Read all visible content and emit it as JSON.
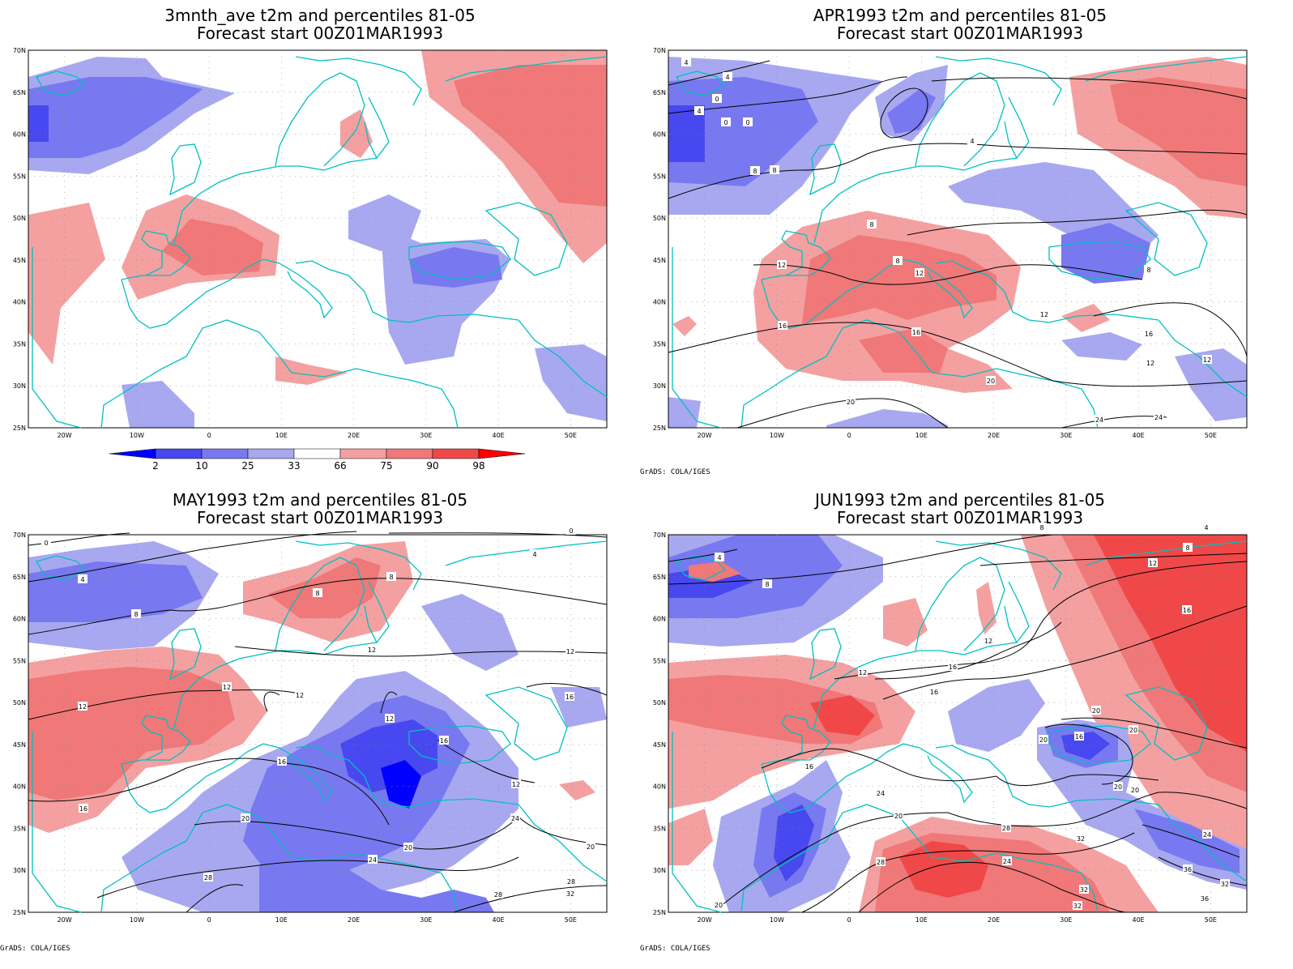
{
  "credit": "GrADS: COLA/IGES",
  "lat_labels": [
    "70N",
    "65N",
    "60N",
    "55N",
    "50N",
    "45N",
    "40N",
    "35N",
    "30N",
    "25N"
  ],
  "lon_labels": [
    "20W",
    "10W",
    "0",
    "10E",
    "20E",
    "30E",
    "40E",
    "50E"
  ],
  "legend": {
    "values": [
      "2",
      "10",
      "25",
      "33",
      "66",
      "75",
      "90",
      "98"
    ],
    "colors": [
      "#0000ff",
      "#4848f0",
      "#7878f0",
      "#a8a8f0",
      "#ffffff",
      "#f4a0a0",
      "#f07878",
      "#f04848",
      "#ff0000"
    ]
  },
  "panels": [
    {
      "id": "p1",
      "title1": "3mnth_ave t2m and percentiles 81-05",
      "title2": "Forecast start 00Z01MAR1993",
      "contour_labels": []
    },
    {
      "id": "p2",
      "title1": "APR1993 t2m and percentiles 81-05",
      "title2": "Forecast start 00Z01MAR1993",
      "contour_labels": [
        "4",
        "0",
        "4",
        "0",
        "0",
        "4",
        "4",
        "8",
        "8",
        "8",
        "12",
        "8",
        "12",
        "8",
        "16",
        "12",
        "16",
        "12",
        "20",
        "20",
        "24",
        "24",
        "16",
        "12"
      ]
    },
    {
      "id": "p3",
      "title1": "MAY1993 t2m and percentiles 81-05",
      "title2": "Forecast start 00Z01MAR1993",
      "contour_labels": [
        "0",
        "4",
        "0",
        "4",
        "8",
        "8",
        "8",
        "12",
        "12",
        "12",
        "12",
        "12",
        "12",
        "16",
        "16",
        "12",
        "16",
        "16",
        "20",
        "20",
        "24",
        "28",
        "24",
        "20",
        "28",
        "28",
        "32"
      ]
    },
    {
      "id": "p4",
      "title1": "JUN1993 t2m and percentiles 81-05",
      "title2": "Forecast start 00Z01MAR1993",
      "contour_labels": [
        "8",
        "4",
        "8",
        "4",
        "8",
        "12",
        "16",
        "12",
        "12",
        "16",
        "16",
        "20",
        "20",
        "16",
        "20",
        "16",
        "20",
        "20",
        "24",
        "20",
        "28",
        "24",
        "32",
        "28",
        "32",
        "36",
        "24",
        "32",
        "32",
        "36",
        "20"
      ]
    }
  ]
}
